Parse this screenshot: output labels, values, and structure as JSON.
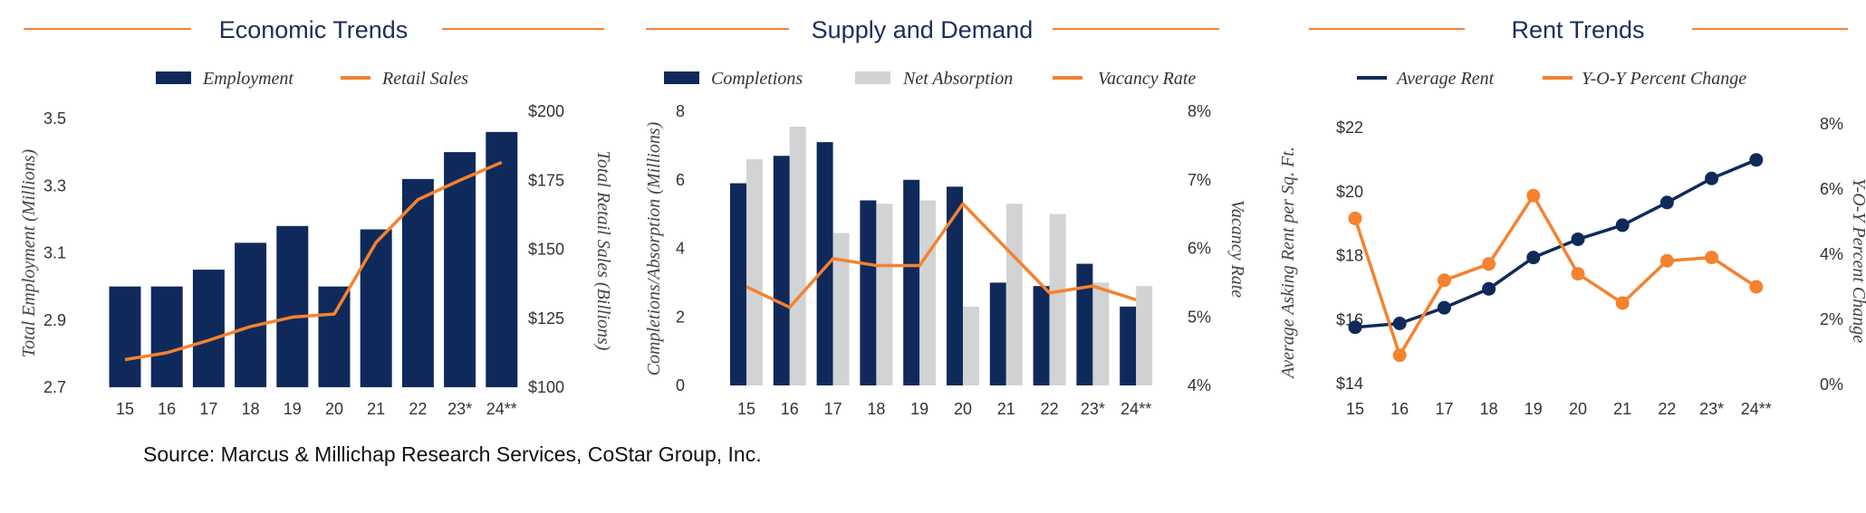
{
  "colors": {
    "navy": "#0f2a5a",
    "orange": "#f5822f",
    "gray": "#d1d3d5",
    "title": "#1b2f5c"
  },
  "source": "Source:  Marcus & Millichap Research Services, CoStar Group, Inc.",
  "chart_data": [
    {
      "type": "bar+line",
      "title": "Economic Trends",
      "categories": [
        "15",
        "16",
        "17",
        "18",
        "19",
        "20",
        "21",
        "22",
        "23*",
        "24**"
      ],
      "left_axis": {
        "label": "Total Employment (Millions)",
        "ticks": [
          "2.7",
          "2.9",
          "3.1",
          "3.3",
          "3.5"
        ],
        "range": [
          2.7,
          3.5
        ]
      },
      "right_axis": {
        "label": "Total Retail Sales (Billions)",
        "ticks": [
          "$100",
          "$125",
          "$150",
          "$175",
          "$200"
        ],
        "range": [
          100,
          200
        ]
      },
      "series": [
        {
          "name": "Employment",
          "type": "bar",
          "axis": "left",
          "values": [
            3.0,
            3.0,
            3.05,
            3.13,
            3.18,
            3.0,
            3.17,
            3.32,
            3.4,
            3.46
          ]
        },
        {
          "name": "Retail Sales",
          "type": "line",
          "axis": "right",
          "values": [
            110,
            112.5,
            117,
            122,
            125.4,
            126.5,
            152.5,
            168,
            175,
            181.5
          ]
        }
      ],
      "legend": "top"
    },
    {
      "type": "bar+line",
      "title": "Supply and Demand",
      "categories": [
        "15",
        "16",
        "17",
        "18",
        "19",
        "20",
        "21",
        "22",
        "23*",
        "24**"
      ],
      "left_axis": {
        "label": "Completions/Absorption (Millions)",
        "ticks": [
          "0",
          "2",
          "4",
          "6",
          "8"
        ],
        "range": [
          0,
          8
        ]
      },
      "right_axis": {
        "label": "Vacancy Rate",
        "ticks": [
          "4%",
          "5%",
          "6%",
          "7%",
          "8%"
        ],
        "range": [
          4,
          8
        ]
      },
      "series": [
        {
          "name": "Completions",
          "type": "bar",
          "axis": "left",
          "values": [
            5.9,
            6.7,
            7.1,
            5.4,
            6.0,
            5.8,
            3.0,
            2.9,
            3.55,
            2.3
          ]
        },
        {
          "name": "Net Absorption",
          "type": "bar",
          "axis": "left",
          "values": [
            6.6,
            7.55,
            4.45,
            5.3,
            5.4,
            2.3,
            5.3,
            5.0,
            3.0,
            2.9
          ]
        },
        {
          "name": "Vacancy Rate",
          "type": "line",
          "axis": "right",
          "values": [
            5.44,
            5.14,
            5.85,
            5.75,
            5.75,
            6.65,
            6.0,
            5.35,
            5.45,
            5.25
          ]
        }
      ],
      "legend": "top"
    },
    {
      "type": "line",
      "title": "Rent Trends",
      "categories": [
        "15",
        "16",
        "17",
        "18",
        "19",
        "20",
        "21",
        "22",
        "23*",
        "24**"
      ],
      "left_axis": {
        "label": "Average Asking Rent per Sq. Ft.",
        "ticks": [
          "$14",
          "$16",
          "$18",
          "$20",
          "$22"
        ],
        "range": [
          14,
          22
        ]
      },
      "right_axis": {
        "label": "Y-O-Y Percent Change",
        "ticks": [
          "0%",
          "2%",
          "4%",
          "6%",
          "8%"
        ],
        "range": [
          0,
          8
        ]
      },
      "series": [
        {
          "name": "Average Rent",
          "type": "line",
          "axis": "left",
          "values": [
            15.76,
            15.88,
            16.37,
            16.96,
            17.94,
            18.51,
            18.95,
            19.66,
            20.41,
            20.99
          ]
        },
        {
          "name": "Y-O-Y Percent Change",
          "type": "line",
          "axis": "right",
          "values": [
            5.1,
            0.9,
            3.2,
            3.7,
            5.8,
            3.4,
            2.5,
            3.8,
            3.9,
            3.0
          ]
        }
      ],
      "legend": "top"
    }
  ]
}
